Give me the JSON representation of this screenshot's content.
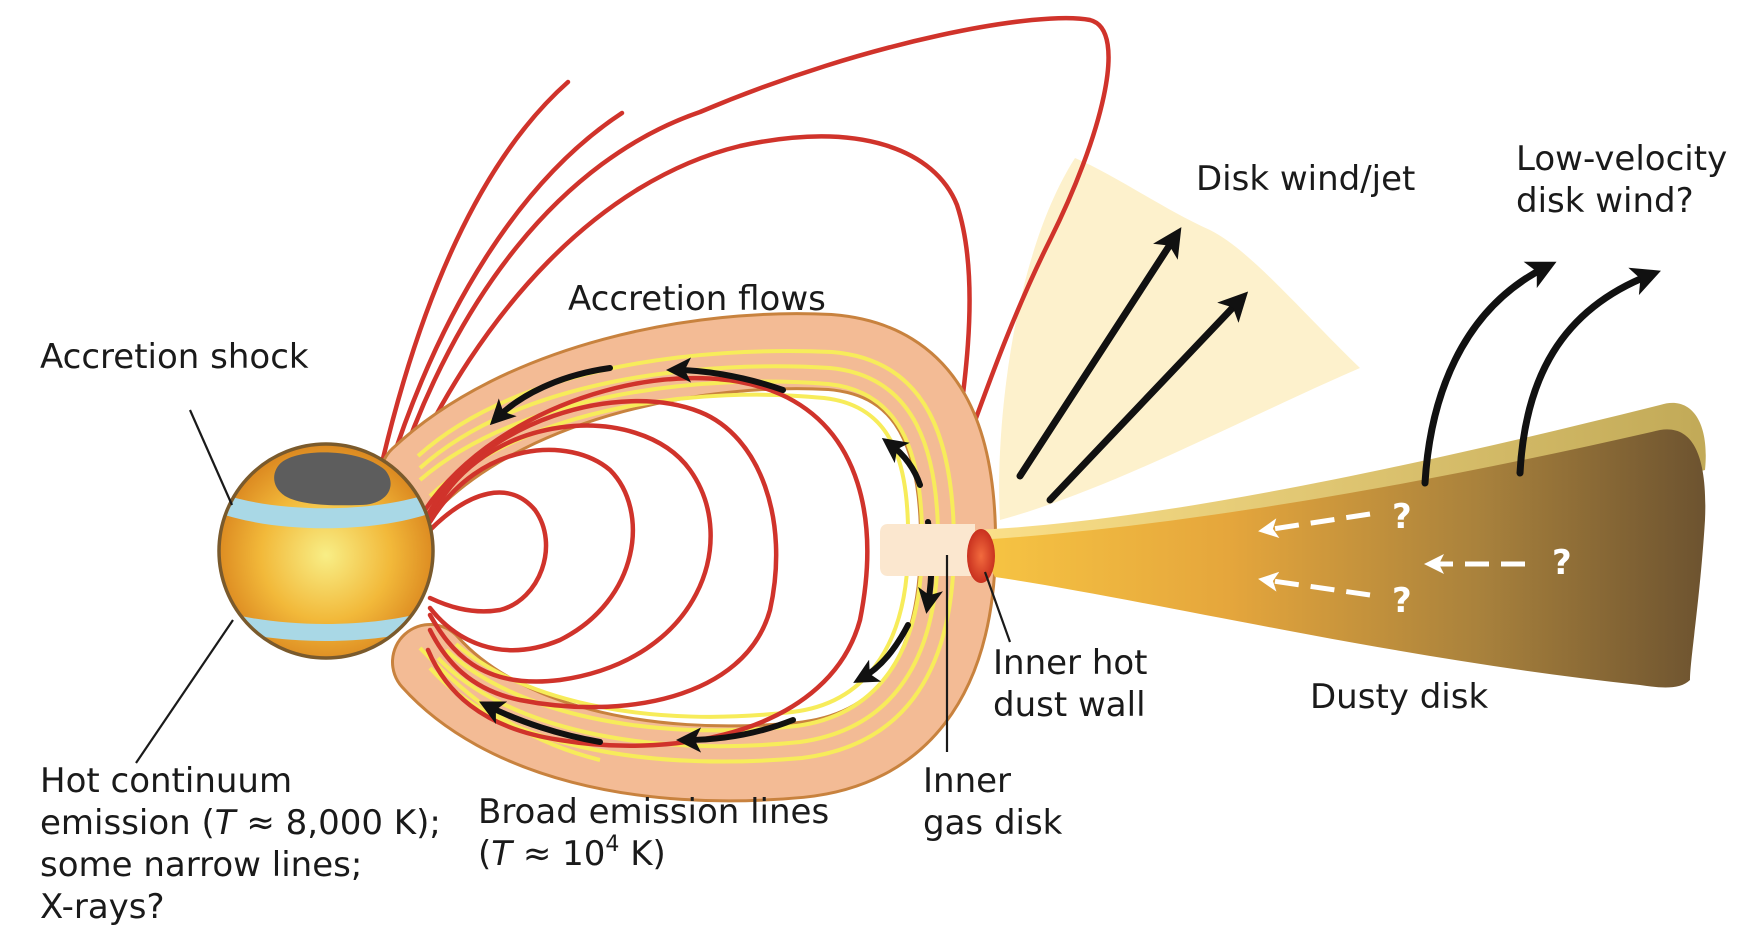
{
  "labels": {
    "accretion_shock": "Accretion shock",
    "accretion_flows": "Accretion flows",
    "disk_wind_jet": "Disk wind/jet",
    "low_velocity_line1": "Low-velocity",
    "low_velocity_line2": "disk wind?",
    "hot_continuum_line1": "Hot continuum",
    "hot_continuum_line2_pre": "emission (",
    "hot_continuum_line2_var": "T",
    "hot_continuum_line2_post": " ≈ 8,000 K);",
    "hot_continuum_line3": "some narrow lines;",
    "hot_continuum_line4": "X-rays?",
    "broad_emission_line1": "Broad emission lines",
    "broad_emission_line2_pre": "(",
    "broad_emission_line2_var": "T",
    "broad_emission_line2_mid": " ≈ 10",
    "broad_emission_line2_exp": "4",
    "broad_emission_line2_post": " K)",
    "inner_gas_line1": "Inner",
    "inner_gas_line2": "gas disk",
    "inner_dust_line1": "Inner hot",
    "inner_dust_line2": "dust wall",
    "dusty_disk": "Dusty disk",
    "question_mark": "?"
  },
  "colors": {
    "field_line": "#d0332b",
    "flow_band_outer": "#f3bb95",
    "flow_band_stroke": "#c8823e",
    "flow_streak": "#f7ec5a",
    "star_core": "#f6e87a",
    "star_edge": "#d9841f",
    "star_outline": "#7a5a2c",
    "shock_band": "#a9d8e6",
    "spot": "#5d5d5d",
    "wind_cone": "#fdf1cc",
    "gas_disk": "#fbe7cf",
    "dust_wall": "#e5462c",
    "disk_light": "#f6c441",
    "disk_dark": "#76592d",
    "arrow": "#111111"
  }
}
